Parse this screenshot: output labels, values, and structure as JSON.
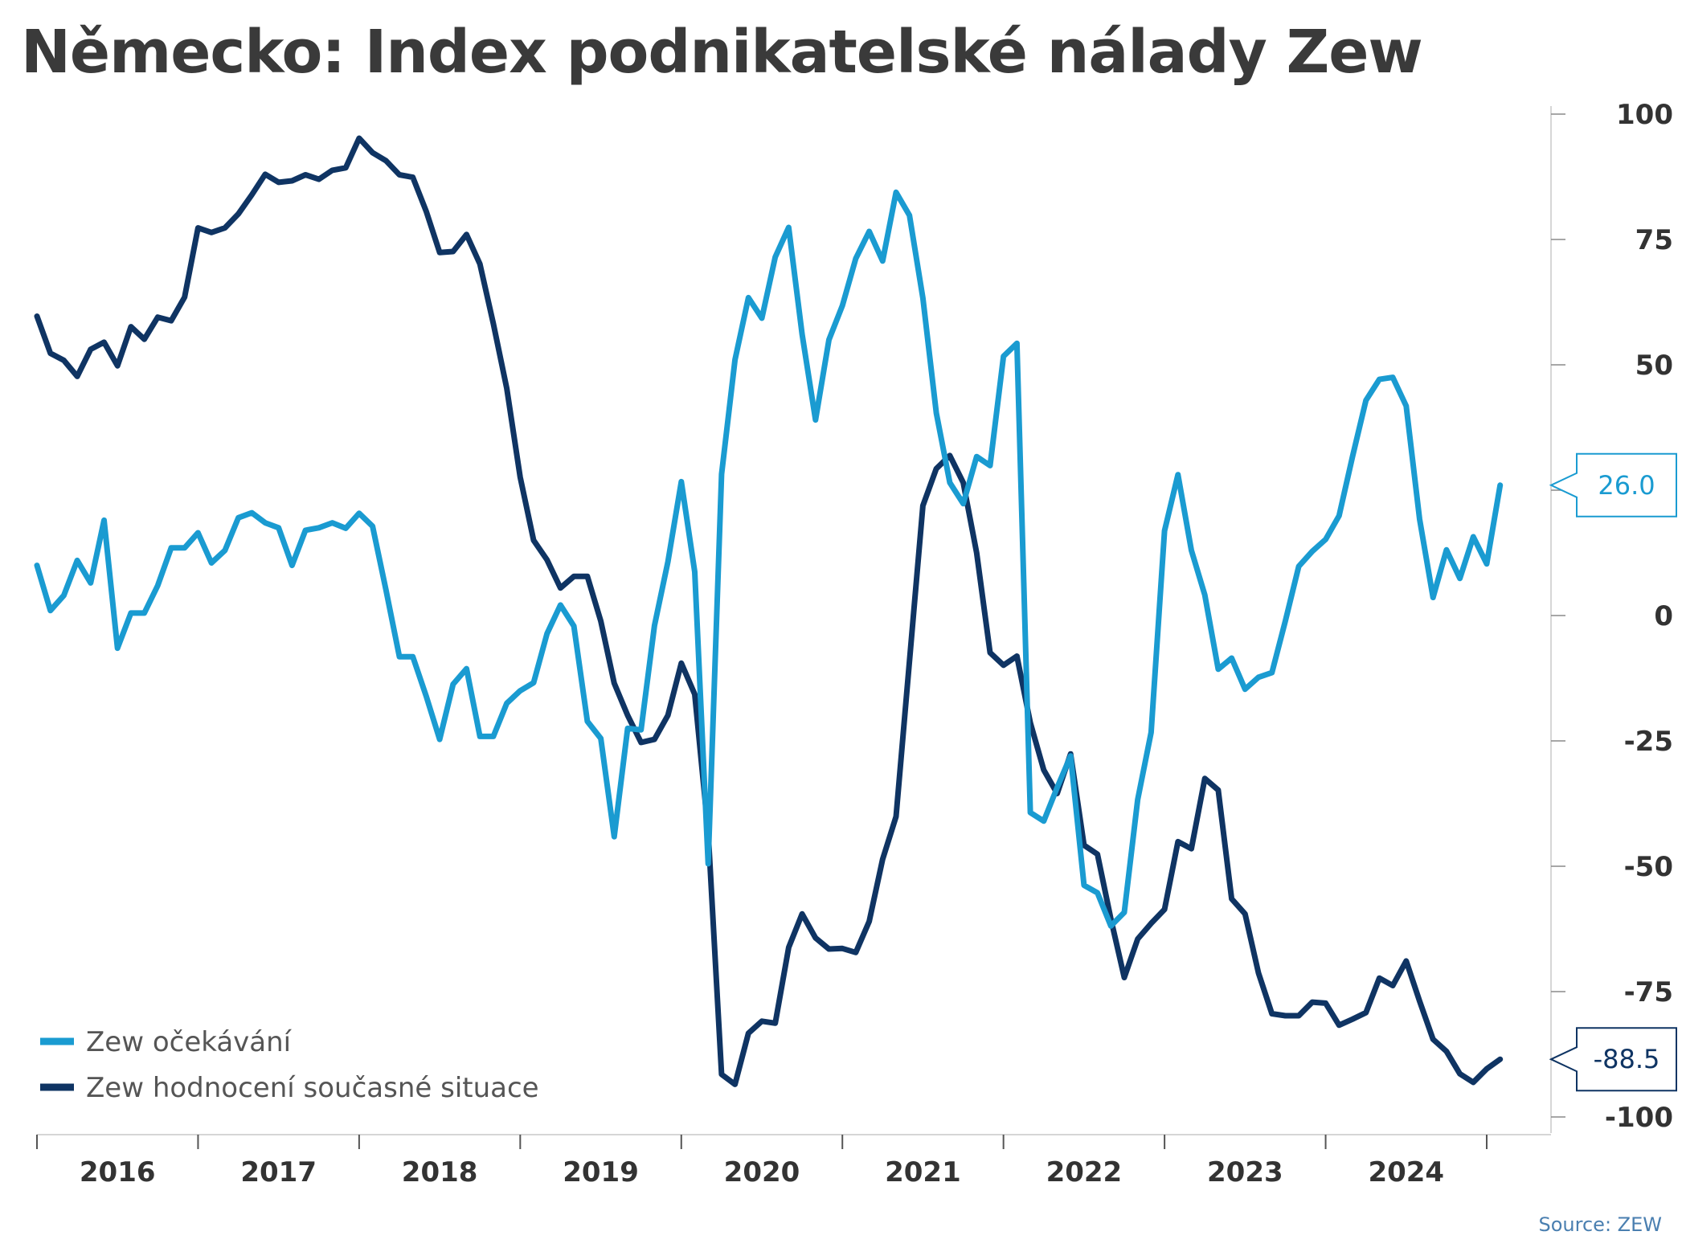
{
  "chart_data": {
    "type": "line",
    "title": "Německo: Index podnikatelské nálady Zew",
    "source": "Source: ZEW",
    "ylim": [
      -100,
      100
    ],
    "yticks": [
      100,
      75,
      50,
      25,
      0,
      -25,
      -50,
      -75,
      -100
    ],
    "ytick_labels": [
      "100",
      "75",
      "50",
      "",
      "0",
      "-25",
      "-50",
      "-75",
      "-100"
    ],
    "x_range": [
      "2016-01",
      "2025-05"
    ],
    "x_tick_labels": [
      "2016",
      "2017",
      "2018",
      "2019",
      "2020",
      "2021",
      "2022",
      "2023",
      "2024"
    ],
    "grid": false,
    "legend_position": "bottom-left",
    "series": [
      {
        "name": "Zew očekávání",
        "color": "#1a9bd1",
        "last_value_label": "26.0",
        "start": "2016-01",
        "values": [
          10,
          1,
          4,
          11,
          6.5,
          19,
          -6.5,
          0.5,
          0.5,
          6,
          13.5,
          13.5,
          16.5,
          10.5,
          13,
          19.5,
          20.5,
          18.5,
          17.5,
          10,
          17,
          17.5,
          18.5,
          17.4,
          20.4,
          17.8,
          5.1,
          -8.2,
          -8.2,
          -16.1,
          -24.7,
          -13.7,
          -10.6,
          -24.1,
          -24.1,
          -17.5,
          -15,
          -13.4,
          -3.6,
          2.1,
          -2.1,
          -21.1,
          -24.5,
          -44.1,
          -22.5,
          -22.8,
          -2,
          10.7,
          26.7,
          8.7,
          -49.5,
          28.2,
          51,
          63.4,
          59.3,
          71.5,
          77.4,
          56.1,
          39,
          55,
          61.8,
          71.2,
          76.6,
          70.7,
          84.4,
          79.8,
          63.3,
          40.4,
          26.5,
          22.3,
          31.7,
          29.9,
          51.7,
          54.3,
          -39.3,
          -41,
          -34.3,
          -28,
          -53.8,
          -55.3,
          -61.9,
          -59.2,
          -36.7,
          -23.3,
          16.9,
          28.1,
          13,
          4.1,
          -10.7,
          -8.5,
          -14.7,
          -12.3,
          -11.4,
          -1.1,
          9.8,
          12.8,
          15.2,
          19.9,
          31.7,
          42.9,
          47.1,
          47.5,
          41.8,
          19.2,
          3.6,
          13.1,
          7.4,
          15.7,
          10.3,
          26
        ]
      },
      {
        "name": "Zew hodnocení současné situace",
        "color": "#0f3463",
        "last_value_label": "-88.5",
        "start": "2016-01",
        "values": [
          59.7,
          52.3,
          50.9,
          47.7,
          53.1,
          54.5,
          49.8,
          57.6,
          55.1,
          59.5,
          58.8,
          63.5,
          77.3,
          76.4,
          77.3,
          80.1,
          83.9,
          88,
          86.4,
          86.7,
          87.9,
          87,
          88.8,
          89.3,
          95.2,
          92.3,
          90.7,
          87.9,
          87.4,
          80.6,
          72.4,
          72.6,
          76,
          70.1,
          58.2,
          45.3,
          27.6,
          15,
          11.1,
          5.5,
          7.8,
          7.8,
          -1.1,
          -13.5,
          -19.9,
          -25.3,
          -24.7,
          -19.9,
          -9.5,
          -15.7,
          -43.1,
          -91.5,
          -93.5,
          -83.3,
          -80.9,
          -81.3,
          -66.2,
          -59.5,
          -64.3,
          -66.5,
          -66.4,
          -67.2,
          -61,
          -48.6,
          -40.1,
          -9.1,
          21.9,
          29.3,
          31.9,
          26.5,
          12.5,
          -7.4,
          -9.9,
          -8.1,
          -21.4,
          -30.8,
          -35.5,
          -27.6,
          -45.8,
          -47.6,
          -60.5,
          -72.2,
          -64.5,
          -61.4,
          -58.6,
          -45.1,
          -46.5,
          -32.5,
          -34.8,
          -56.5,
          -59.5,
          -71.3,
          -79.4,
          -79.8,
          -79.8,
          -77.1,
          -77.3,
          -81.7,
          -80.5,
          -79.2,
          -72.3,
          -73.8,
          -68.9,
          -76.9,
          -84.5,
          -86.9,
          -91.4,
          -93.1,
          -90.4,
          -88.5
        ]
      }
    ]
  }
}
